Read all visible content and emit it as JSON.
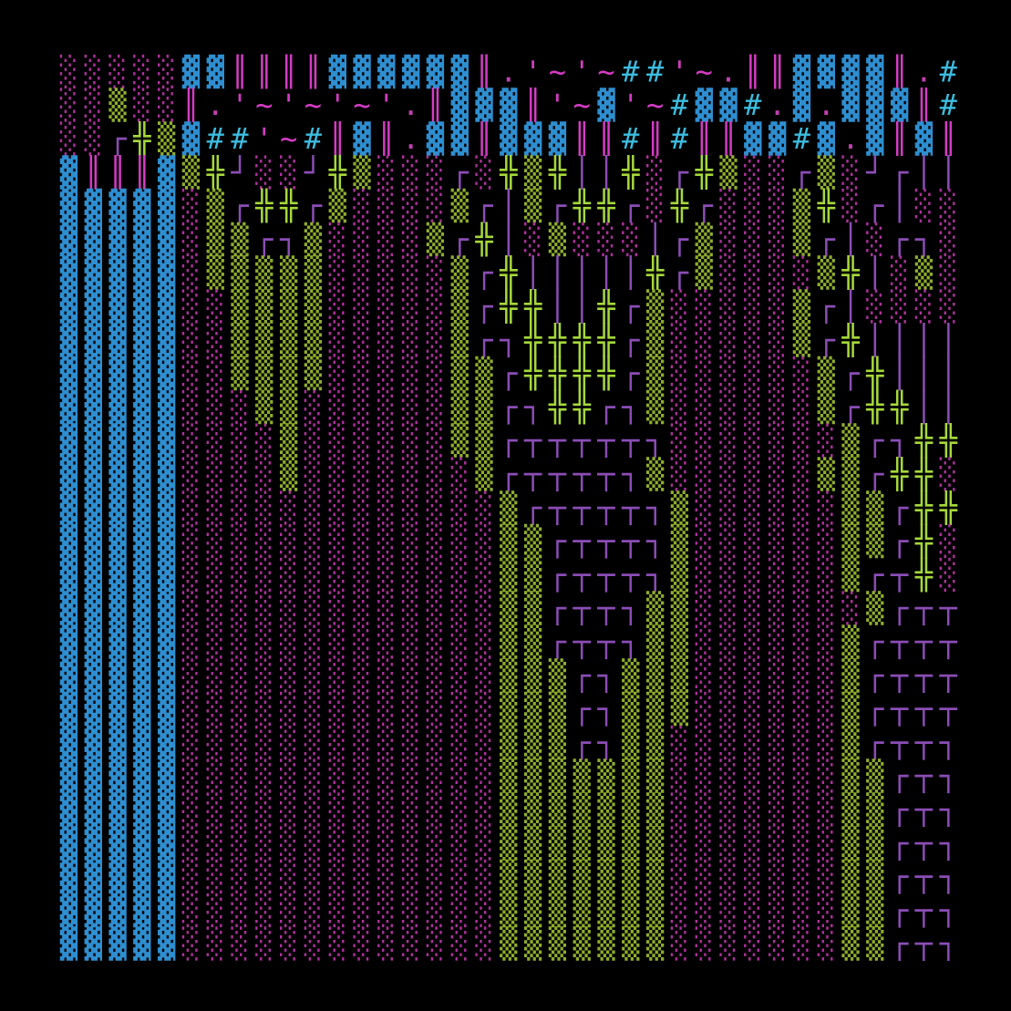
{
  "grid": {
    "rows": [
      "░░░░░▓▓║║║║▓▓▓▓▓▓║.'~'~##'~.║║▓▓▓▓║.#",
      "░░▒░░║.'~'~'~'.║▓▓▓║'~▓'~#▓▓#.▓.▓▓▓║#",
      "░░┌╬▒▓##'~#║▓║.▓▓║▓▓▓║║#║#║║▓▓#▓.▓║▓║",
      "▓║║║▓▒╬┘░░┘╬▒░░░┌░╬▒╬││╬░┌╬▒░░┌▒░┘┌││",
      "▓▓▓▓▓░▒┌╬╬┌▒░░░░▒┌│▒┌╬╬┌░╬┌░░░▒╬░┌│░░",
      "▓▓▓▓▓░▒▒┌┐▒░░░░▒┌╬│░▒░░░│┌▒░░░▒┌│░┌┐░",
      "▓▓▓▓▓░▒▒▒▒▒░░░░░▒┌╬│││││╬┌▒░░░░▒╬│░▒░",
      "▓▓▓▓▓░░▒▒▒▒░░░░░▒┌╬╬││╬┌▒░░░░░▒┌│░░░░",
      "▓▓▓▓▓░░▒▒▒▒░░░░░▒┌┐╬╬╬╬┌▒░░░░░▒┌╬││││",
      "▓▓▓▓▓░░▒▒▒▒░░░░░▒▒┌╬╬╬╬┌▒░░░░░░▒┌╬│││",
      "▓▓▓▓▓░░░▒▒░░░░░░▒▒┌┐╬╬┌┐▒░░░░░░▒┌╬╬││",
      "▓▓▓▓▓░░░░▒░░░░░░▒▒┌┬┬┬┬┬┐░░░░░░░▒┌┐╬╬",
      "▓▓▓▓▓░░░░▒░░░░░░░▒┌┬┬┬┬┐▒░░░░░░▒▒┌╬╬░",
      "▓▓▓▓▓░░░░░░░░░░░░░▒┌┬┬┬┬┐▒░░░░░░▒▒┌╬╬",
      "▓▓▓▓▓░░░░░░░░░░░░░▒▒┌┬┬┬┐▒░░░░░░▒▒┌╬░",
      "▓▓▓▓▓░░░░░░░░░░░░░▒▒┌┬┬┬┐▒░░░░░░▒┌┬╬░",
      "▓▓▓▓▓░░░░░░░░░░░░░▒▒┌┬┬┐▒▒░░░░░░░▒┌┬┬",
      "▓▓▓▓▓░░░░░░░░░░░░░▒▒┌┬┬┐▒▒░░░░░░▒┌┬┬┬",
      "▓▓▓▓▓░░░░░░░░░░░░░▒▒▒┌┐▒▒▒░░░░░░▒┌┬┬┬",
      "▓▓▓▓▓░░░░░░░░░░░░░▒▒▒┌┐▒▒▒░░░░░░▒┌┬┬┬",
      "▓▓▓▓▓░░░░░░░░░░░░░▒▒▒┌┐▒▒░░░░░░░▒┌┬┬┐",
      "▓▓▓▓▓░░░░░░░░░░░░░▒▒▒▒▒▒▒░░░░░░░▒▒┌┬┐",
      "▓▓▓▓▓░░░░░░░░░░░░░▒▒▒▒▒▒▒░░░░░░░▒▒┌┬┐",
      "▓▓▓▓▓░░░░░░░░░░░░░▒▒▒▒▒▒▒░░░░░░░▒▒┌┬┐",
      "▓▓▓▓▓░░░░░░░░░░░░░▒▒▒▒▒▒▒░░░░░░░▒▒┌┬┐",
      "▓▓▓▓▓░░░░░░░░░░░░░▒▒▒▒▒▒▒░░░░░░░▒▒┌┬┐",
      "▓▓▓▓▓░░░░░░░░░░░░░▒▒▒▒▒▒▒░░░░░░░▒▒┌┬┐"
    ],
    "colors": {
      "▓": "#2e8ed0",
      "░": "#b0309f",
      "▒": "#8fae2c",
      "║": "#d43cc4",
      "╬": "#a6d83a",
      "┌": "#8a4db5",
      "┐": "#8a4db5",
      "┬": "#8a4db5",
      "┘": "#8a4db5",
      "│": "#8a4db5",
      "#": "#3cbde0",
      ".": "#c040b0",
      "'": "#d43cc4",
      "~": "#d43cc4"
    }
  }
}
